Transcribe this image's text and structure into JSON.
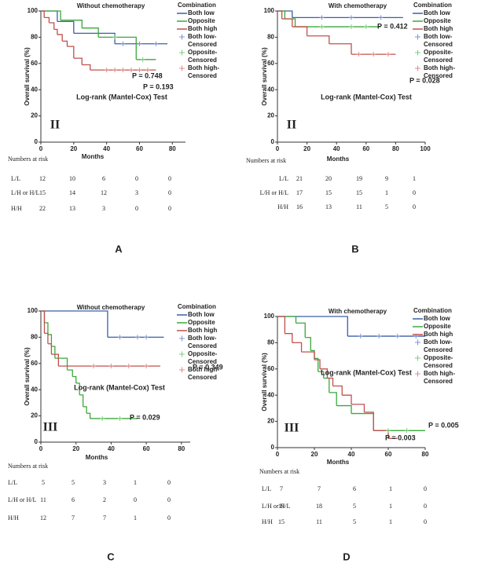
{
  "chart_data": [
    {
      "type": "line",
      "title": "Without chemotherapy",
      "xlabel": "Months",
      "ylabel": "Overall survival (%)",
      "xlim": [
        0,
        88
      ],
      "xticks": [
        0,
        20,
        40,
        60,
        80
      ],
      "ylim": [
        0,
        100
      ],
      "yticks": [
        0,
        20,
        40,
        60,
        80,
        100
      ],
      "legend_title": "Combination",
      "series": [
        {
          "name": "Both low",
          "color": "#3a5fa8",
          "x": [
            0,
            10,
            20,
            45,
            77
          ],
          "values": [
            100,
            92,
            83,
            75,
            75
          ]
        },
        {
          "name": "Opposite",
          "color": "#3aa83a",
          "x": [
            0,
            12,
            25,
            35,
            58,
            70
          ],
          "values": [
            100,
            93,
            87,
            80,
            63,
            63
          ]
        },
        {
          "name": "Both high",
          "color": "#c0504d",
          "x": [
            0,
            2,
            5,
            8,
            10,
            13,
            16,
            20,
            25,
            30,
            70
          ],
          "values": [
            100,
            95,
            91,
            86,
            82,
            77,
            73,
            64,
            59,
            55,
            55
          ]
        },
        {
          "name": "Both low-Censored",
          "color": "#7b96d0",
          "marker": "+",
          "x": [
            50,
            60,
            70
          ],
          "values": [
            75,
            75,
            75
          ]
        },
        {
          "name": "Opposite-Censored",
          "color": "#7bd07b",
          "marker": "+",
          "x": [
            45,
            62
          ],
          "values": [
            80,
            63
          ]
        },
        {
          "name": "Both high-Censored",
          "color": "#e08a88",
          "marker": "+",
          "x": [
            40,
            45,
            50,
            55,
            60,
            65
          ],
          "values": [
            55,
            55,
            55,
            55,
            55,
            55
          ]
        }
      ],
      "annotations": [
        "P = 0.748",
        "P = 0.193",
        "Log-rank (Mantel-Cox) Test"
      ],
      "stage": "II",
      "panel_label": "A",
      "risk_table": {
        "title": "Numbers at risk",
        "rows": [
          {
            "label": "L/L",
            "values": [
              12,
              10,
              6,
              0,
              0
            ]
          },
          {
            "label": "L/H or H/L",
            "values": [
              15,
              14,
              12,
              3,
              0
            ]
          },
          {
            "label": "H/H",
            "values": [
              22,
              13,
              3,
              0,
              0
            ]
          }
        ]
      }
    },
    {
      "type": "line",
      "title": "With chemotherapy",
      "xlabel": "Months",
      "ylabel": "Overall survival (%)",
      "xlim": [
        0,
        100
      ],
      "xticks": [
        0,
        20,
        40,
        60,
        80,
        100
      ],
      "ylim": [
        0,
        100
      ],
      "yticks": [
        0,
        20,
        40,
        60,
        80,
        100
      ],
      "legend_title": "Combination",
      "series": [
        {
          "name": "Both low",
          "color": "#3a5fa8",
          "x": [
            0,
            10,
            85
          ],
          "values": [
            100,
            95,
            95
          ]
        },
        {
          "name": "Opposite",
          "color": "#3aa83a",
          "x": [
            0,
            5,
            12,
            70
          ],
          "values": [
            100,
            94,
            88,
            88
          ]
        },
        {
          "name": "Both high",
          "color": "#c0504d",
          "x": [
            0,
            3,
            10,
            20,
            35,
            50,
            80
          ],
          "values": [
            100,
            94,
            88,
            81,
            75,
            67,
            67
          ]
        },
        {
          "name": "Both low-Censored",
          "color": "#7b96d0",
          "marker": "+",
          "x": [
            30,
            50,
            70
          ],
          "values": [
            95,
            95,
            95
          ]
        },
        {
          "name": "Opposite-Censored",
          "color": "#7bd07b",
          "marker": "+",
          "x": [
            30,
            50,
            60
          ],
          "values": [
            88,
            88,
            88
          ]
        },
        {
          "name": "Both high-Censored",
          "color": "#e08a88",
          "marker": "+",
          "x": [
            55,
            65,
            75
          ],
          "values": [
            67,
            67,
            67
          ]
        }
      ],
      "annotations": [
        "P = 0.412",
        "P = 0.028",
        "Log-rank (Mantel-Cox) Test"
      ],
      "stage": "II",
      "panel_label": "B",
      "risk_table": {
        "title": "Numbers at risk",
        "rows": [
          {
            "label": "L/L",
            "values": [
              21,
              20,
              19,
              9,
              1
            ]
          },
          {
            "label": "L/H or H/L",
            "values": [
              17,
              15,
              15,
              1,
              0
            ]
          },
          {
            "label": "H/H",
            "values": [
              16,
              13,
              11,
              5,
              0
            ]
          }
        ]
      }
    },
    {
      "type": "line",
      "title": "Without chemotherapy",
      "xlabel": "Months",
      "ylabel": "Overall survival (%)",
      "xlim": [
        0,
        85
      ],
      "xticks": [
        0,
        20,
        40,
        60,
        80
      ],
      "ylim": [
        0,
        100
      ],
      "yticks": [
        0,
        20,
        40,
        60,
        80,
        100
      ],
      "legend_title": "Combination",
      "series": [
        {
          "name": "Both low",
          "color": "#3a5fa8",
          "x": [
            0,
            38,
            70
          ],
          "values": [
            100,
            80,
            80
          ]
        },
        {
          "name": "Opposite",
          "color": "#3aa83a",
          "x": [
            0,
            2,
            4,
            6,
            8,
            15,
            18,
            20,
            22,
            24,
            26,
            28,
            55
          ],
          "values": [
            100,
            91,
            82,
            73,
            64,
            55,
            50,
            45,
            36,
            27,
            22,
            18,
            18
          ]
        },
        {
          "name": "Both high",
          "color": "#c0504d",
          "x": [
            0,
            2,
            4,
            6,
            10,
            68
          ],
          "values": [
            100,
            83,
            75,
            67,
            58,
            58
          ]
        },
        {
          "name": "Both low-Censored",
          "color": "#7b96d0",
          "marker": "+",
          "x": [
            45,
            55,
            60
          ],
          "values": [
            80,
            80,
            80
          ]
        },
        {
          "name": "Opposite-Censored",
          "color": "#7bd07b",
          "marker": "+",
          "x": [
            35,
            45
          ],
          "values": [
            18,
            18
          ]
        },
        {
          "name": "Both high-Censored",
          "color": "#e08a88",
          "marker": "+",
          "x": [
            30,
            40,
            50,
            60
          ],
          "values": [
            58,
            58,
            58,
            58
          ]
        }
      ],
      "annotations": [
        "P = 0.349",
        "P = 0.029",
        "Log-rank (Mantel-Cox) Test"
      ],
      "stage": "III",
      "panel_label": "C",
      "risk_table": {
        "title": "Numbers at risk",
        "rows": [
          {
            "label": "L/L",
            "values": [
              5,
              5,
              3,
              1,
              0
            ]
          },
          {
            "label": "L/H or H/L",
            "values": [
              11,
              6,
              2,
              0,
              0
            ]
          },
          {
            "label": "H/H",
            "values": [
              12,
              7,
              7,
              1,
              0
            ]
          }
        ]
      }
    },
    {
      "type": "line",
      "title": "With chemotherapy",
      "xlabel": "Months",
      "ylabel": "Overall survival (%)",
      "xlim": [
        0,
        80
      ],
      "xticks": [
        0,
        20,
        40,
        60,
        80
      ],
      "ylim": [
        0,
        100
      ],
      "yticks": [
        0,
        20,
        40,
        60,
        80,
        100
      ],
      "legend_title": "Combination",
      "series": [
        {
          "name": "Both low",
          "color": "#3a5fa8",
          "x": [
            0,
            38,
            80
          ],
          "values": [
            100,
            85,
            85
          ]
        },
        {
          "name": "Opposite",
          "color": "#3aa83a",
          "x": [
            0,
            10,
            15,
            18,
            20,
            22,
            25,
            28,
            32,
            40,
            52,
            80
          ],
          "values": [
            100,
            95,
            84,
            74,
            68,
            58,
            53,
            42,
            32,
            26,
            13,
            13
          ]
        },
        {
          "name": "Both high",
          "color": "#c0504d",
          "x": [
            0,
            4,
            8,
            13,
            20,
            23,
            27,
            30,
            35,
            40,
            47,
            52,
            60,
            65
          ],
          "values": [
            100,
            87,
            80,
            73,
            67,
            60,
            53,
            47,
            40,
            33,
            27,
            13,
            7,
            7
          ]
        },
        {
          "name": "Both low-Censored",
          "color": "#7b96d0",
          "marker": "+",
          "x": [
            45,
            55,
            65,
            75
          ],
          "values": [
            85,
            85,
            85,
            85
          ]
        },
        {
          "name": "Opposite-Censored",
          "color": "#7bd07b",
          "marker": "+",
          "x": [
            60,
            70
          ],
          "values": [
            13,
            13
          ]
        },
        {
          "name": "Both high-Censored",
          "color": "#e08a88",
          "marker": "+",
          "x": [],
          "values": []
        }
      ],
      "annotations": [
        "P = 0.005",
        "P = 0.003",
        "Log-rank (Mantel-Cox) Test"
      ],
      "stage": "III",
      "panel_label": "D",
      "risk_table": {
        "title": "Numbers at risk",
        "rows": [
          {
            "label": "L/L",
            "values": [
              7,
              7,
              6,
              1,
              0
            ]
          },
          {
            "label": "L/H or H/L",
            "values": [
              19,
              18,
              5,
              1,
              0
            ]
          },
          {
            "label": "H/H",
            "values": [
              15,
              11,
              5,
              1,
              0
            ]
          }
        ]
      }
    }
  ]
}
